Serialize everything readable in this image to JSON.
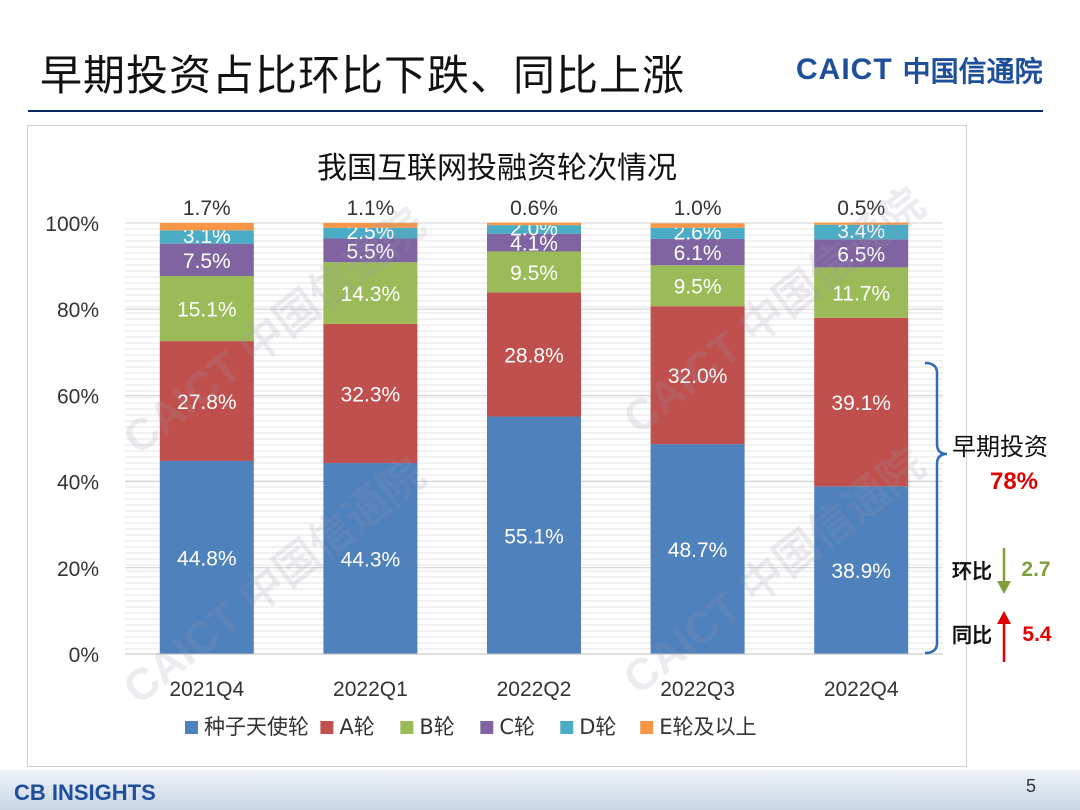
{
  "slide": {
    "title": "早期投资占比环比下跌、同比上涨",
    "logo_en": "CAICT",
    "logo_cn": "中国信通院",
    "page_number": "5",
    "footer_logo": "CB INSIGHTS"
  },
  "colors": {
    "seed": "#4f81bd",
    "a": "#c0504d",
    "b": "#9bbb59",
    "c": "#8064a2",
    "d": "#4bacc6",
    "e": "#f79646",
    "title_rule": "#0b2a5b",
    "highlight_red": "#e00000",
    "highlight_green": "#7f9f3f"
  },
  "chart_data": {
    "type": "bar",
    "stacked": true,
    "title": "我国互联网投融资轮次情况",
    "categories": [
      "2021Q4",
      "2022Q1",
      "2022Q2",
      "2022Q3",
      "2022Q4"
    ],
    "series": [
      {
        "name": "种子天使轮",
        "values": [
          44.8,
          44.3,
          55.1,
          48.7,
          38.9
        ],
        "labels": [
          "44.8%",
          "44.3%",
          "55.1%",
          "48.7%",
          "38.9%"
        ]
      },
      {
        "name": "A轮",
        "values": [
          27.8,
          32.3,
          28.8,
          32.0,
          39.1
        ],
        "labels": [
          "27.8%",
          "32.3%",
          "28.8%",
          "32.0%",
          "39.1%"
        ]
      },
      {
        "name": "B轮",
        "values": [
          15.1,
          14.3,
          9.5,
          9.5,
          11.7
        ],
        "labels": [
          "15.1%",
          "14.3%",
          "9.5%",
          "9.5%",
          "11.7%"
        ]
      },
      {
        "name": "C轮",
        "values": [
          7.5,
          5.5,
          4.1,
          6.1,
          6.5
        ],
        "labels": [
          "7.5%",
          "5.5%",
          "4.1%",
          "6.1%",
          "6.5%"
        ]
      },
      {
        "name": "D轮",
        "values": [
          3.1,
          2.5,
          2.0,
          2.6,
          3.4
        ],
        "labels": [
          "3.1%",
          "2.5%",
          "2.0%",
          "2.6%",
          "3.4%"
        ]
      },
      {
        "name": "E轮及以上",
        "values": [
          1.7,
          1.1,
          0.6,
          1.0,
          0.5
        ],
        "labels": [
          "1.7%",
          "1.1%",
          "0.6%",
          "1.0%",
          "0.5%"
        ]
      }
    ],
    "yticks": [
      "0%",
      "20%",
      "40%",
      "60%",
      "80%",
      "100%"
    ],
    "ylim": [
      0,
      100
    ],
    "grid": true,
    "legend_position": "bottom"
  },
  "annotations": {
    "early_label": "早期投资",
    "early_value": "78%",
    "qoq_label": "环比",
    "qoq_value": "2.7",
    "yoy_label": "同比",
    "yoy_value": "5.4"
  },
  "watermark_text": "CAICT 中国信通院"
}
